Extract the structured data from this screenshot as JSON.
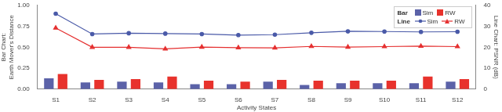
{
  "chart_data": {
    "type": "bar",
    "categories": [
      "S1",
      "S2",
      "S3",
      "S4",
      "S5",
      "S6",
      "S7",
      "S8",
      "S9",
      "S10",
      "S11",
      "S12"
    ],
    "xlabel": "Activity States",
    "ylabel": [
      "Bar Chart:",
      "Earth Mover's Distance"
    ],
    "y2label": "Line Chart: PSNR (dB)",
    "ylim": [
      0,
      1
    ],
    "yticks": [
      {
        "value": 0,
        "label": "0.00"
      },
      0.25,
      {
        "value": 0.5,
        "label": "0.50"
      },
      0.75,
      {
        "value": 1,
        "label": "1.00"
      }
    ],
    "y2lim": [
      0,
      40
    ],
    "y2ticks": [
      0,
      10,
      20,
      30,
      40
    ],
    "grid": false,
    "legend": "upper right",
    "legend_titles": {
      "bar": "Bar",
      "line": "Line"
    },
    "series": [
      {
        "name": "Sim",
        "type": "bar",
        "color": "#5b62a8",
        "values": [
          0.13,
          0.08,
          0.09,
          0.08,
          0.06,
          0.06,
          0.09,
          0.05,
          0.07,
          0.07,
          0.07,
          0.09
        ]
      },
      {
        "name": "RW",
        "type": "bar",
        "color": "#e8322c",
        "values": [
          0.18,
          0.11,
          0.12,
          0.15,
          0.1,
          0.09,
          0.11,
          0.1,
          0.1,
          0.1,
          0.15,
          0.12
        ]
      },
      {
        "name": "Sim",
        "type": "line",
        "axis": "y2",
        "color": "#4a5aa8",
        "marker": "circle",
        "values": [
          36.0,
          26.3,
          26.7,
          26.5,
          26.3,
          25.8,
          26.0,
          26.9,
          27.6,
          27.5,
          27.3,
          27.4
        ]
      },
      {
        "name": "RW",
        "type": "line",
        "axis": "y2",
        "color": "#e53030",
        "marker": "triangle",
        "values": [
          29.2,
          20.0,
          20.0,
          19.2,
          20.1,
          19.8,
          19.7,
          20.4,
          20.1,
          20.3,
          20.5,
          20.3
        ]
      }
    ]
  }
}
